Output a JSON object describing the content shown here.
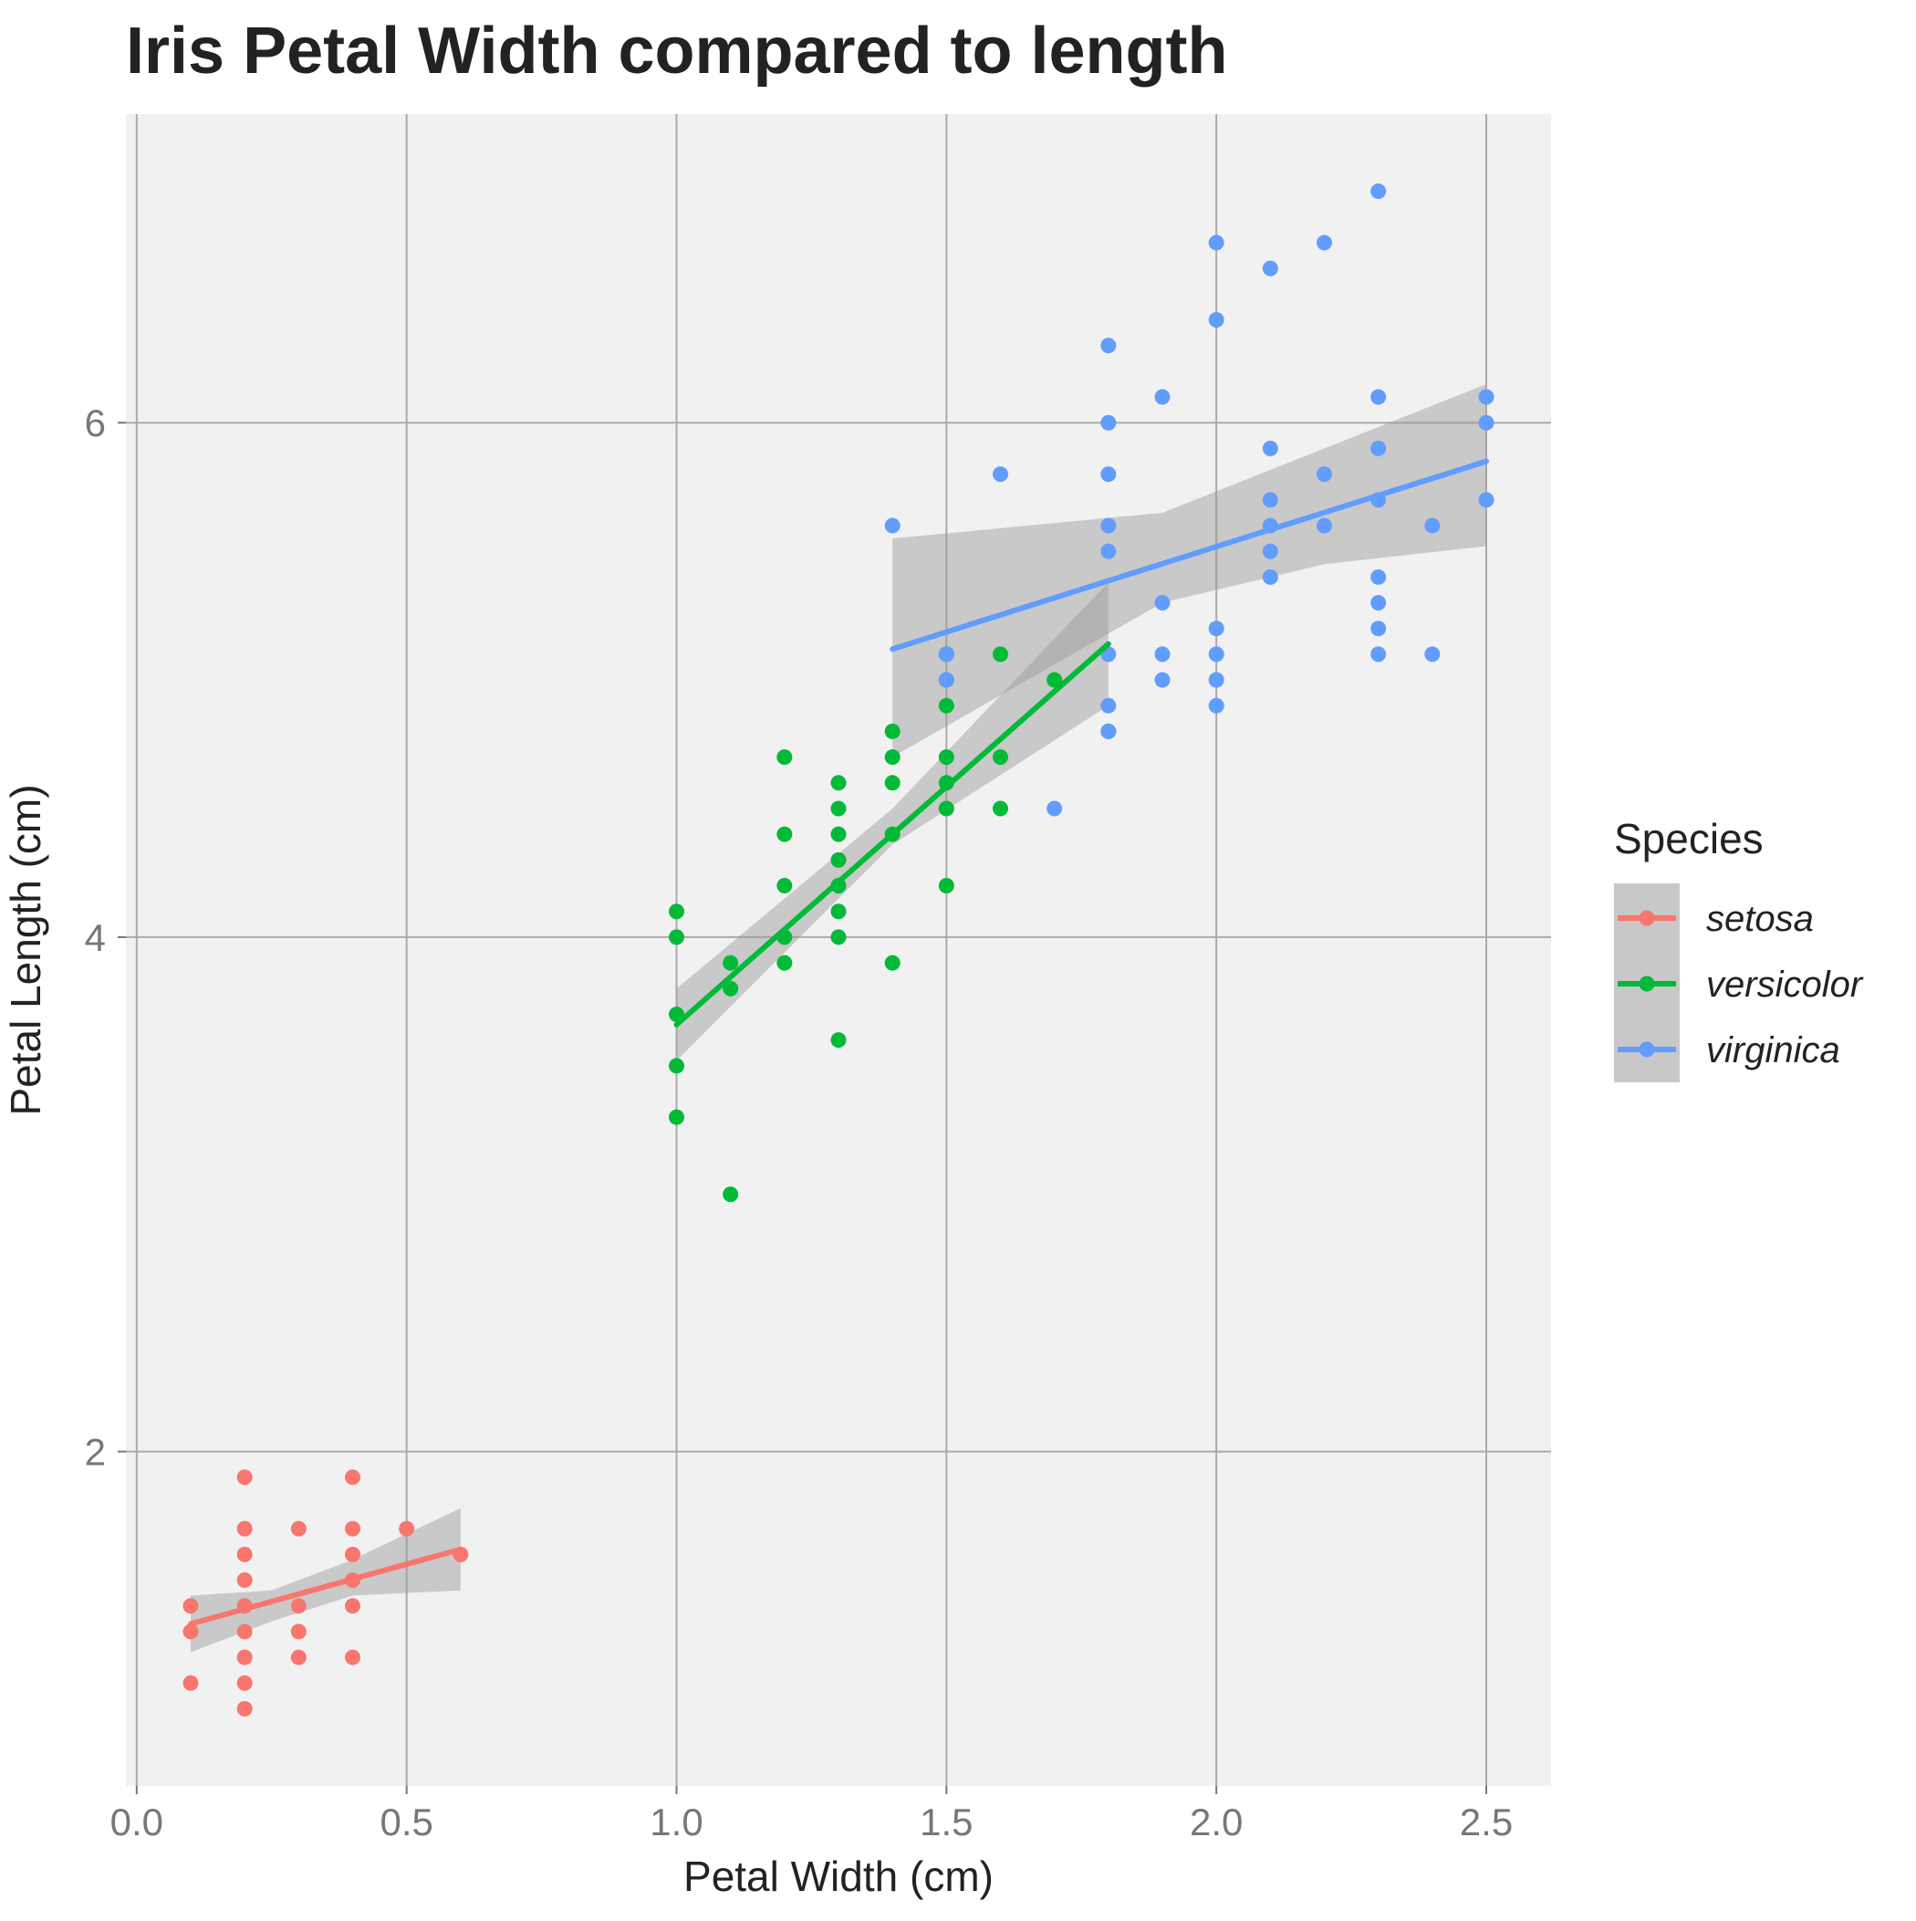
{
  "chart_data": {
    "type": "scatter",
    "title": "Iris Petal Width compared to length",
    "xlabel": "Petal Width (cm)",
    "ylabel": "Petal Length (cm)",
    "xlim": [
      -0.02,
      2.62
    ],
    "ylim": [
      0.7,
      7.2
    ],
    "x_ticks": [
      0.0,
      0.5,
      1.0,
      1.5,
      2.0,
      2.5
    ],
    "x_tick_labels": [
      "0.0",
      "0.5",
      "1.0",
      "1.5",
      "2.0",
      "2.5"
    ],
    "y_ticks": [
      2,
      4,
      6
    ],
    "y_tick_labels": [
      "2",
      "4",
      "6"
    ],
    "grid": true,
    "legend": {
      "title": "Species",
      "position": "right"
    },
    "series": [
      {
        "name": "setosa",
        "color": "#F8766D",
        "points": [
          [
            0.1,
            1.4
          ],
          [
            0.1,
            1.3
          ],
          [
            0.1,
            1.1
          ],
          [
            0.2,
            1.9
          ],
          [
            0.2,
            1.7
          ],
          [
            0.2,
            1.6
          ],
          [
            0.2,
            1.5
          ],
          [
            0.2,
            1.4
          ],
          [
            0.2,
            1.3
          ],
          [
            0.2,
            1.2
          ],
          [
            0.2,
            1.1
          ],
          [
            0.2,
            1.0
          ],
          [
            0.3,
            1.7
          ],
          [
            0.3,
            1.4
          ],
          [
            0.3,
            1.3
          ],
          [
            0.3,
            1.2
          ],
          [
            0.4,
            1.9
          ],
          [
            0.4,
            1.7
          ],
          [
            0.4,
            1.6
          ],
          [
            0.4,
            1.5
          ],
          [
            0.4,
            1.4
          ],
          [
            0.4,
            1.2
          ],
          [
            0.5,
            1.7
          ],
          [
            0.6,
            1.6
          ]
        ],
        "fit": {
          "x": [
            0.1,
            0.6
          ],
          "y": [
            1.33,
            1.62
          ]
        },
        "ci": {
          "x": [
            0.1,
            0.25,
            0.4,
            0.6
          ],
          "lower": [
            1.22,
            1.34,
            1.44,
            1.46
          ],
          "upper": [
            1.44,
            1.46,
            1.58,
            1.78
          ]
        }
      },
      {
        "name": "versicolor",
        "color": "#00BA38",
        "points": [
          [
            1.0,
            4.1
          ],
          [
            1.0,
            4.0
          ],
          [
            1.0,
            3.7
          ],
          [
            1.0,
            3.5
          ],
          [
            1.0,
            3.3
          ],
          [
            1.1,
            3.9
          ],
          [
            1.1,
            3.8
          ],
          [
            1.1,
            3.0
          ],
          [
            1.2,
            4.7
          ],
          [
            1.2,
            4.4
          ],
          [
            1.2,
            4.2
          ],
          [
            1.2,
            4.0
          ],
          [
            1.2,
            3.9
          ],
          [
            1.3,
            4.6
          ],
          [
            1.3,
            4.5
          ],
          [
            1.3,
            4.4
          ],
          [
            1.3,
            4.3
          ],
          [
            1.3,
            4.2
          ],
          [
            1.3,
            4.1
          ],
          [
            1.3,
            4.0
          ],
          [
            1.3,
            3.6
          ],
          [
            1.4,
            4.8
          ],
          [
            1.4,
            4.7
          ],
          [
            1.4,
            4.6
          ],
          [
            1.4,
            4.4
          ],
          [
            1.4,
            3.9
          ],
          [
            1.5,
            5.1
          ],
          [
            1.5,
            5.0
          ],
          [
            1.5,
            4.9
          ],
          [
            1.5,
            4.7
          ],
          [
            1.5,
            4.6
          ],
          [
            1.5,
            4.5
          ],
          [
            1.5,
            4.2
          ],
          [
            1.6,
            5.1
          ],
          [
            1.6,
            4.7
          ],
          [
            1.6,
            4.5
          ],
          [
            1.7,
            5.0
          ],
          [
            1.8,
            4.8
          ]
        ],
        "fit": {
          "x": [
            1.0,
            1.8
          ],
          "y": [
            3.66,
            5.14
          ]
        },
        "ci": {
          "x": [
            1.0,
            1.4,
            1.8
          ],
          "lower": [
            3.52,
            4.36,
            4.9
          ],
          "upper": [
            3.8,
            4.5,
            5.38
          ]
        }
      },
      {
        "name": "virginica",
        "color": "#619CFF",
        "points": [
          [
            1.4,
            5.6
          ],
          [
            1.5,
            5.1
          ],
          [
            1.5,
            5.0
          ],
          [
            1.6,
            5.8
          ],
          [
            1.7,
            4.5
          ],
          [
            1.8,
            6.3
          ],
          [
            1.8,
            6.0
          ],
          [
            1.8,
            5.8
          ],
          [
            1.8,
            5.6
          ],
          [
            1.8,
            5.5
          ],
          [
            1.8,
            5.1
          ],
          [
            1.8,
            4.9
          ],
          [
            1.8,
            4.8
          ],
          [
            1.9,
            6.1
          ],
          [
            1.9,
            5.3
          ],
          [
            1.9,
            5.1
          ],
          [
            1.9,
            5.0
          ],
          [
            2.0,
            6.7
          ],
          [
            2.0,
            6.4
          ],
          [
            2.0,
            5.2
          ],
          [
            2.0,
            5.1
          ],
          [
            2.0,
            5.0
          ],
          [
            2.0,
            4.9
          ],
          [
            2.1,
            6.6
          ],
          [
            2.1,
            5.9
          ],
          [
            2.1,
            5.7
          ],
          [
            2.1,
            5.6
          ],
          [
            2.1,
            5.5
          ],
          [
            2.1,
            5.4
          ],
          [
            2.2,
            6.7
          ],
          [
            2.2,
            5.8
          ],
          [
            2.2,
            5.6
          ],
          [
            2.3,
            6.9
          ],
          [
            2.3,
            6.1
          ],
          [
            2.3,
            5.9
          ],
          [
            2.3,
            5.7
          ],
          [
            2.3,
            5.4
          ],
          [
            2.3,
            5.3
          ],
          [
            2.3,
            5.2
          ],
          [
            2.3,
            5.1
          ],
          [
            2.4,
            5.6
          ],
          [
            2.4,
            5.1
          ],
          [
            2.5,
            6.1
          ],
          [
            2.5,
            6.0
          ],
          [
            2.5,
            5.7
          ]
        ],
        "fit": {
          "x": [
            1.4,
            2.5
          ],
          "y": [
            5.12,
            5.85
          ]
        },
        "ci": {
          "x": [
            1.4,
            1.9,
            2.2,
            2.5
          ],
          "lower": [
            4.7,
            5.3,
            5.45,
            5.52
          ],
          "upper": [
            5.55,
            5.65,
            5.9,
            6.15
          ]
        }
      }
    ]
  }
}
